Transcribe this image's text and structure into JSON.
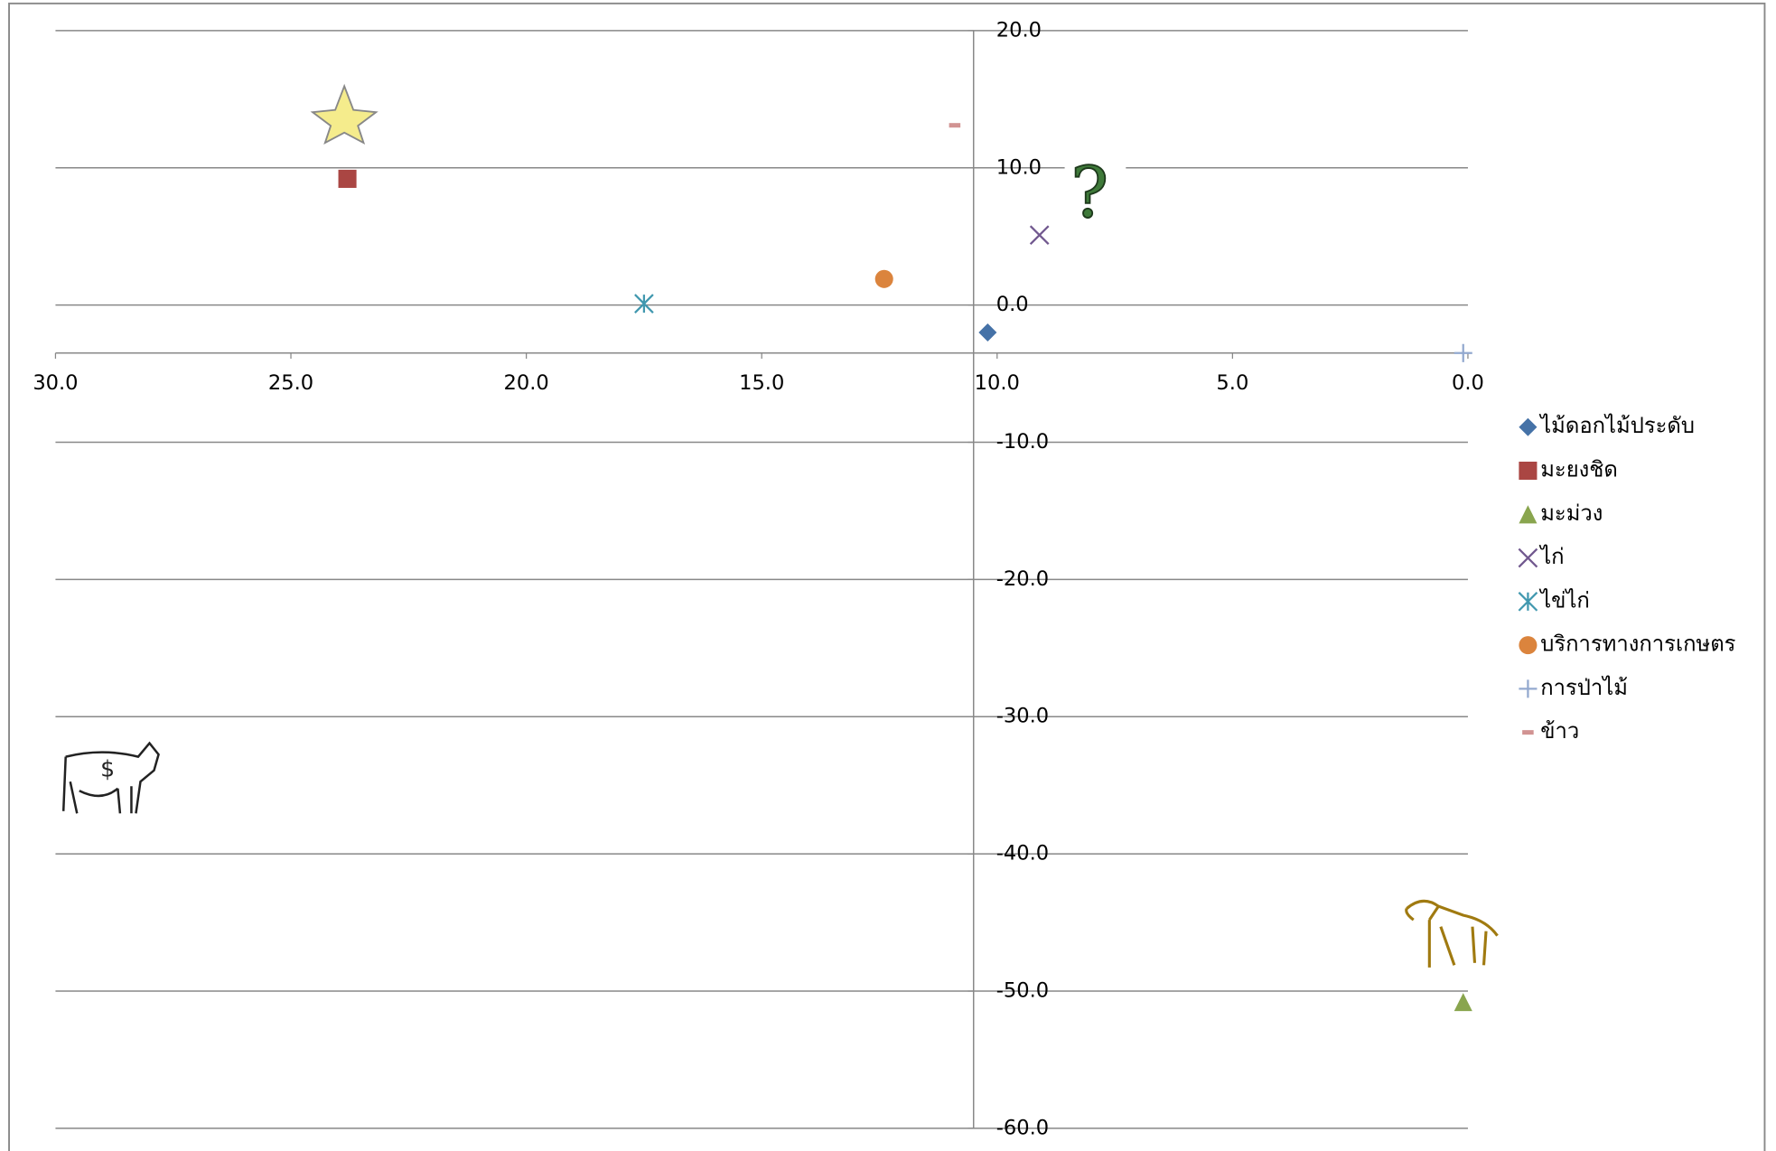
{
  "chart_data": {
    "type": "scatter",
    "xlim": [
      0,
      30
    ],
    "x_reversed": true,
    "xticks": [
      {
        "value": 30,
        "label": "30.0"
      },
      {
        "value": 25,
        "label": "25.0"
      },
      {
        "value": 20,
        "label": "20.0"
      },
      {
        "value": 15,
        "label": "15.0"
      },
      {
        "value": 10,
        "label": "10.0"
      },
      {
        "value": 5,
        "label": "5.0"
      },
      {
        "value": 0,
        "label": "0.0"
      }
    ],
    "ylim": [
      -60,
      20
    ],
    "yticks": [
      {
        "value": 20,
        "label": "20.0"
      },
      {
        "value": 10,
        "label": "10.0"
      },
      {
        "value": 0,
        "label": "0.0"
      },
      {
        "value": -10,
        "label": "-10.0"
      },
      {
        "value": -20,
        "label": "-20.0"
      },
      {
        "value": -30,
        "label": "-30.0"
      },
      {
        "value": -40,
        "label": "-40.0"
      },
      {
        "value": -50,
        "label": "-50.0"
      },
      {
        "value": -60,
        "label": "-60.0"
      }
    ],
    "x_axis_crosses_y": -3.5,
    "y_axis_crosses_x": 10.5,
    "grid": true,
    "legend": "right",
    "series": [
      {
        "name": "ไม้ดอกไม้ประดับ",
        "color": "#4572a7",
        "marker": "diamond",
        "x": [
          10.2
        ],
        "values": [
          -2.0
        ]
      },
      {
        "name": "มะยงชิด",
        "color": "#aa4643",
        "marker": "square",
        "x": [
          23.8
        ],
        "values": [
          9.2
        ]
      },
      {
        "name": "มะม่วง",
        "color": "#89a54e",
        "marker": "triangle",
        "x": [
          0.1
        ],
        "values": [
          -50.8
        ]
      },
      {
        "name": "ไก่",
        "color": "#71588f",
        "marker": "x",
        "x": [
          9.1
        ],
        "values": [
          5.1
        ]
      },
      {
        "name": "ไข่ไก่",
        "color": "#4198af",
        "marker": "asterisk",
        "x": [
          17.5
        ],
        "values": [
          0.1
        ]
      },
      {
        "name": "บริการทางการเกษตร",
        "color": "#db843d",
        "marker": "circle",
        "x": [
          12.4
        ],
        "values": [
          1.9
        ]
      },
      {
        "name": "การป่าไม้",
        "color": "#93a9cf",
        "marker": "plus",
        "x": [
          0.1
        ],
        "values": [
          -3.5
        ]
      },
      {
        "name": "ข้าว",
        "color": "#d19392",
        "marker": "dash",
        "x": [
          10.9
        ],
        "values": [
          13.1
        ]
      }
    ]
  }
}
